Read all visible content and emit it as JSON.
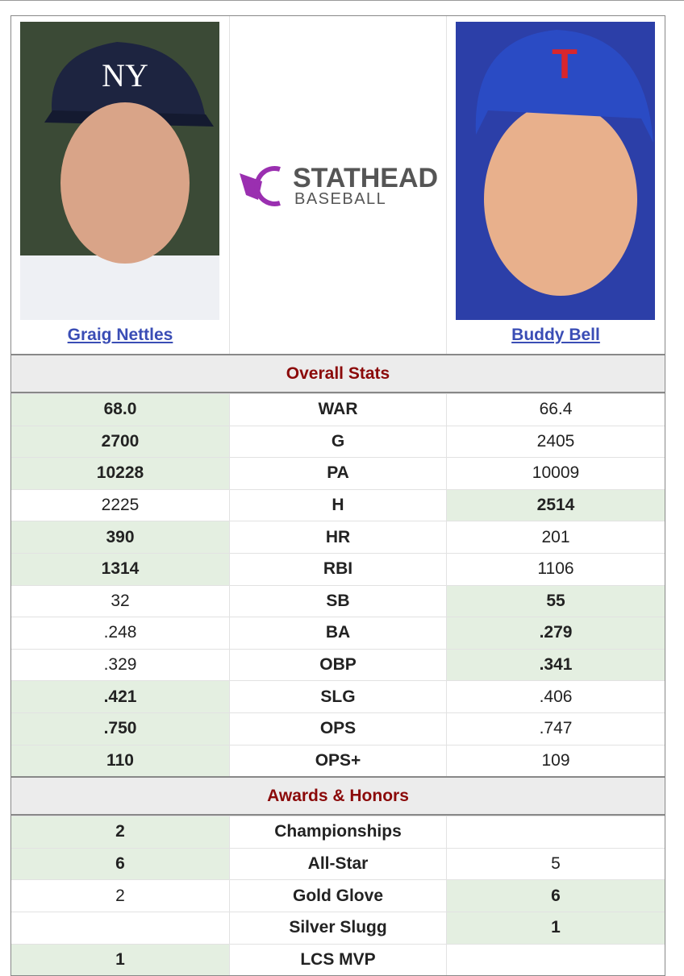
{
  "players": {
    "left": "Graig Nettles",
    "right": "Buddy Bell"
  },
  "logo": {
    "title": "STATHEAD",
    "subtitle": "BASEBALL"
  },
  "sections": [
    {
      "title": "Overall Stats",
      "rows": [
        {
          "left": "68.0",
          "stat": "WAR",
          "right": "66.4",
          "better": "left"
        },
        {
          "left": "2700",
          "stat": "G",
          "right": "2405",
          "better": "left"
        },
        {
          "left": "10228",
          "stat": "PA",
          "right": "10009",
          "better": "left"
        },
        {
          "left": "2225",
          "stat": "H",
          "right": "2514",
          "better": "right"
        },
        {
          "left": "390",
          "stat": "HR",
          "right": "201",
          "better": "left"
        },
        {
          "left": "1314",
          "stat": "RBI",
          "right": "1106",
          "better": "left"
        },
        {
          "left": "32",
          "stat": "SB",
          "right": "55",
          "better": "right"
        },
        {
          "left": ".248",
          "stat": "BA",
          "right": ".279",
          "better": "right"
        },
        {
          "left": ".329",
          "stat": "OBP",
          "right": ".341",
          "better": "right"
        },
        {
          "left": ".421",
          "stat": "SLG",
          "right": ".406",
          "better": "left"
        },
        {
          "left": ".750",
          "stat": "OPS",
          "right": ".747",
          "better": "left"
        },
        {
          "left": "110",
          "stat": "OPS+",
          "right": "109",
          "better": "left"
        }
      ]
    },
    {
      "title": "Awards & Honors",
      "rows": [
        {
          "left": "2",
          "stat": "Championships",
          "right": null,
          "better": "left"
        },
        {
          "left": "6",
          "stat": "All-Star",
          "right": "5",
          "better": "left"
        },
        {
          "left": "2",
          "stat": "Gold Glove",
          "right": "6",
          "better": "right"
        },
        {
          "left": null,
          "stat": "Silver Slugg",
          "right": "1",
          "better": "right"
        },
        {
          "left": "1",
          "stat": "LCS MVP",
          "right": null,
          "better": "left"
        }
      ]
    }
  ]
}
